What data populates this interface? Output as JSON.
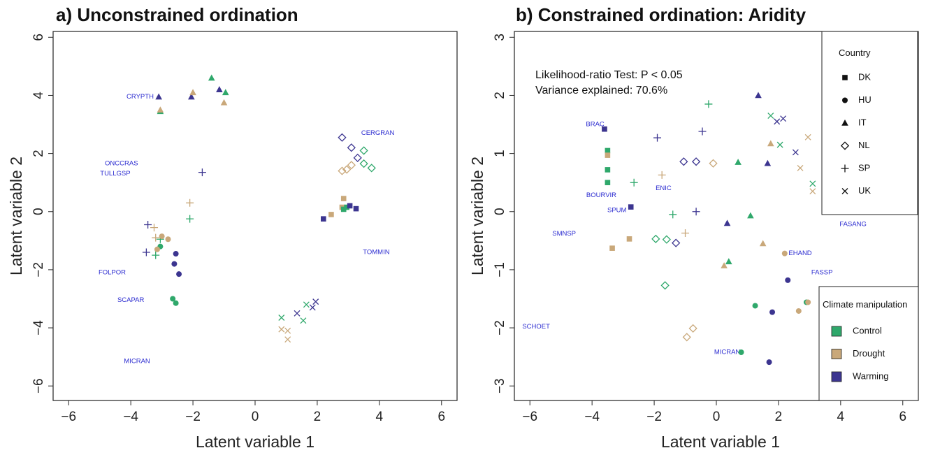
{
  "colors": {
    "Control": "#2fa86b",
    "Drought": "#c9a87a",
    "Warming": "#3c3590",
    "species_label": "#2b2bd0",
    "axis": "#222222"
  },
  "chart_data": [
    {
      "type": "scatter",
      "title": "a) Unconstrained ordination",
      "xlabel": "Latent variable  1",
      "ylabel": "Latent variable  2",
      "xlim": [
        -6.5,
        6.5
      ],
      "ylim": [
        -6.5,
        6.2
      ],
      "xticks": [
        -6,
        -4,
        -2,
        0,
        2,
        4,
        6
      ],
      "yticks": [
        -6,
        -4,
        -2,
        0,
        2,
        4,
        6
      ],
      "grid": false,
      "points": [
        {
          "x": -3.05,
          "y": 3.45,
          "country": "IT",
          "treatment": "Control"
        },
        {
          "x": -3.05,
          "y": 3.5,
          "country": "IT",
          "treatment": "Drought"
        },
        {
          "x": -3.1,
          "y": 3.95,
          "country": "IT",
          "treatment": "Warming"
        },
        {
          "x": -2.05,
          "y": 3.95,
          "country": "IT",
          "treatment": "Warming"
        },
        {
          "x": -2.0,
          "y": 4.1,
          "country": "IT",
          "treatment": "Drought"
        },
        {
          "x": -1.4,
          "y": 4.6,
          "country": "IT",
          "treatment": "Control"
        },
        {
          "x": -1.15,
          "y": 4.2,
          "country": "IT",
          "treatment": "Warming"
        },
        {
          "x": -0.95,
          "y": 4.1,
          "country": "IT",
          "treatment": "Control"
        },
        {
          "x": -1.0,
          "y": 3.75,
          "country": "IT",
          "treatment": "Drought"
        },
        {
          "x": 2.8,
          "y": 2.55,
          "country": "NL",
          "treatment": "Warming"
        },
        {
          "x": 3.1,
          "y": 2.2,
          "country": "NL",
          "treatment": "Warming"
        },
        {
          "x": 3.5,
          "y": 2.1,
          "country": "NL",
          "treatment": "Control"
        },
        {
          "x": 3.3,
          "y": 1.85,
          "country": "NL",
          "treatment": "Warming"
        },
        {
          "x": 3.5,
          "y": 1.65,
          "country": "NL",
          "treatment": "Control"
        },
        {
          "x": 3.75,
          "y": 1.5,
          "country": "NL",
          "treatment": "Control"
        },
        {
          "x": 3.1,
          "y": 1.6,
          "country": "NL",
          "treatment": "Drought"
        },
        {
          "x": 2.95,
          "y": 1.45,
          "country": "NL",
          "treatment": "Drought"
        },
        {
          "x": 2.8,
          "y": 1.4,
          "country": "NL",
          "treatment": "Drought"
        },
        {
          "x": 2.85,
          "y": 0.45,
          "country": "DK",
          "treatment": "Drought"
        },
        {
          "x": 2.8,
          "y": 0.15,
          "country": "DK",
          "treatment": "Drought"
        },
        {
          "x": 2.85,
          "y": 0.08,
          "country": "DK",
          "treatment": "Control"
        },
        {
          "x": 2.95,
          "y": 0.15,
          "country": "DK",
          "treatment": "Control"
        },
        {
          "x": 3.05,
          "y": 0.2,
          "country": "DK",
          "treatment": "Warming"
        },
        {
          "x": 3.25,
          "y": 0.1,
          "country": "DK",
          "treatment": "Warming"
        },
        {
          "x": 2.45,
          "y": -0.1,
          "country": "DK",
          "treatment": "Drought"
        },
        {
          "x": 2.2,
          "y": -0.25,
          "country": "DK",
          "treatment": "Warming"
        },
        {
          "x": -1.7,
          "y": 1.35,
          "country": "SP",
          "treatment": "Warming"
        },
        {
          "x": -2.1,
          "y": 0.3,
          "country": "SP",
          "treatment": "Drought"
        },
        {
          "x": -2.1,
          "y": -0.25,
          "country": "SP",
          "treatment": "Control"
        },
        {
          "x": -3.45,
          "y": -0.45,
          "country": "SP",
          "treatment": "Warming"
        },
        {
          "x": -3.25,
          "y": -0.55,
          "country": "SP",
          "treatment": "Drought"
        },
        {
          "x": -3.2,
          "y": -0.9,
          "country": "SP",
          "treatment": "Drought"
        },
        {
          "x": -3.05,
          "y": -0.95,
          "country": "SP",
          "treatment": "Control"
        },
        {
          "x": -3.5,
          "y": -1.4,
          "country": "SP",
          "treatment": "Warming"
        },
        {
          "x": -3.2,
          "y": -1.5,
          "country": "SP",
          "treatment": "Control"
        },
        {
          "x": -3.0,
          "y": -0.85,
          "country": "HU",
          "treatment": "Drought"
        },
        {
          "x": -2.8,
          "y": -0.95,
          "country": "HU",
          "treatment": "Drought"
        },
        {
          "x": -3.05,
          "y": -1.2,
          "country": "HU",
          "treatment": "Control"
        },
        {
          "x": -3.15,
          "y": -1.3,
          "country": "HU",
          "treatment": "Drought"
        },
        {
          "x": -2.55,
          "y": -1.45,
          "country": "HU",
          "treatment": "Warming"
        },
        {
          "x": -2.6,
          "y": -1.8,
          "country": "HU",
          "treatment": "Warming"
        },
        {
          "x": -2.45,
          "y": -2.15,
          "country": "HU",
          "treatment": "Warming"
        },
        {
          "x": -2.65,
          "y": -3.0,
          "country": "HU",
          "treatment": "Control"
        },
        {
          "x": -2.55,
          "y": -3.15,
          "country": "HU",
          "treatment": "Control"
        },
        {
          "x": 1.95,
          "y": -3.1,
          "country": "UK",
          "treatment": "Warming"
        },
        {
          "x": 1.65,
          "y": -3.2,
          "country": "UK",
          "treatment": "Control"
        },
        {
          "x": 1.85,
          "y": -3.3,
          "country": "UK",
          "treatment": "Warming"
        },
        {
          "x": 1.35,
          "y": -3.5,
          "country": "UK",
          "treatment": "Warming"
        },
        {
          "x": 0.85,
          "y": -3.65,
          "country": "UK",
          "treatment": "Control"
        },
        {
          "x": 1.55,
          "y": -3.75,
          "country": "UK",
          "treatment": "Control"
        },
        {
          "x": 0.85,
          "y": -4.05,
          "country": "UK",
          "treatment": "Drought"
        },
        {
          "x": 1.05,
          "y": -4.1,
          "country": "UK",
          "treatment": "Drought"
        },
        {
          "x": 1.05,
          "y": -4.4,
          "country": "UK",
          "treatment": "Drought"
        }
      ],
      "species_labels": [
        {
          "text": "CRYPTH",
          "x": -3.7,
          "y": 3.95
        },
        {
          "text": "CERGRAN",
          "x": 3.95,
          "y": 2.7
        },
        {
          "text": "ONCCRAS",
          "x": -4.3,
          "y": 1.65
        },
        {
          "text": "TULLGSP",
          "x": -4.5,
          "y": 1.3
        },
        {
          "text": "TOMMIN",
          "x": 3.9,
          "y": -1.4
        },
        {
          "text": "FOLPOR",
          "x": -4.6,
          "y": -2.1
        },
        {
          "text": "SCAPAR",
          "x": -4.0,
          "y": -3.05
        },
        {
          "text": "MICRAN",
          "x": -3.8,
          "y": -5.15
        }
      ]
    },
    {
      "type": "scatter",
      "title": "b) Constrained ordination: Aridity",
      "xlabel": "Latent variable  1",
      "ylabel": "Latent variable  2",
      "xlim": [
        -6.5,
        6.5
      ],
      "ylim": [
        -3.25,
        3.1
      ],
      "xticks": [
        -6,
        -4,
        -2,
        0,
        2,
        4,
        6
      ],
      "yticks": [
        -3,
        -2,
        -1,
        0,
        1,
        2,
        3
      ],
      "grid": false,
      "annotation": [
        "Likelihood-ratio Test: P < 0.05",
        "Variance explained: 70.6%"
      ],
      "legend_country": {
        "title": "Country",
        "items": [
          {
            "label": "DK",
            "country": "DK"
          },
          {
            "label": "HU",
            "country": "HU"
          },
          {
            "label": "IT",
            "country": "IT"
          },
          {
            "label": "NL",
            "country": "NL"
          },
          {
            "label": "SP",
            "country": "SP"
          },
          {
            "label": "UK",
            "country": "UK"
          }
        ]
      },
      "legend_treatment": {
        "title": "Climate manipulation",
        "items": [
          "Control",
          "Drought",
          "Warming"
        ]
      },
      "points": [
        {
          "x": -3.6,
          "y": 1.42,
          "country": "DK",
          "treatment": "Drought"
        },
        {
          "x": -3.6,
          "y": 1.42,
          "country": "DK",
          "treatment": "Warming"
        },
        {
          "x": -3.5,
          "y": 1.05,
          "country": "DK",
          "treatment": "Control"
        },
        {
          "x": -3.5,
          "y": 0.97,
          "country": "DK",
          "treatment": "Drought"
        },
        {
          "x": -3.5,
          "y": 0.72,
          "country": "DK",
          "treatment": "Control"
        },
        {
          "x": -3.5,
          "y": 0.5,
          "country": "DK",
          "treatment": "Control"
        },
        {
          "x": -2.75,
          "y": 0.08,
          "country": "DK",
          "treatment": "Warming"
        },
        {
          "x": -3.35,
          "y": -0.63,
          "country": "DK",
          "treatment": "Drought"
        },
        {
          "x": -2.8,
          "y": -0.47,
          "country": "DK",
          "treatment": "Drought"
        },
        {
          "x": -0.25,
          "y": 1.85,
          "country": "SP",
          "treatment": "Control"
        },
        {
          "x": -1.9,
          "y": 1.27,
          "country": "SP",
          "treatment": "Warming"
        },
        {
          "x": -0.45,
          "y": 1.38,
          "country": "SP",
          "treatment": "Warming"
        },
        {
          "x": -1.75,
          "y": 0.63,
          "country": "SP",
          "treatment": "Drought"
        },
        {
          "x": -2.65,
          "y": 0.5,
          "country": "SP",
          "treatment": "Control"
        },
        {
          "x": -1.4,
          "y": -0.05,
          "country": "SP",
          "treatment": "Control"
        },
        {
          "x": -0.65,
          "y": 0.0,
          "country": "SP",
          "treatment": "Warming"
        },
        {
          "x": -1.0,
          "y": -0.37,
          "country": "SP",
          "treatment": "Drought"
        },
        {
          "x": -0.1,
          "y": 0.83,
          "country": "NL",
          "treatment": "Drought"
        },
        {
          "x": -1.05,
          "y": 0.86,
          "country": "NL",
          "treatment": "Warming"
        },
        {
          "x": -0.65,
          "y": 0.86,
          "country": "NL",
          "treatment": "Warming"
        },
        {
          "x": -1.95,
          "y": -0.47,
          "country": "NL",
          "treatment": "Control"
        },
        {
          "x": -1.6,
          "y": -0.48,
          "country": "NL",
          "treatment": "Control"
        },
        {
          "x": -1.3,
          "y": -0.54,
          "country": "NL",
          "treatment": "Warming"
        },
        {
          "x": -1.65,
          "y": -1.27,
          "country": "NL",
          "treatment": "Control"
        },
        {
          "x": -0.75,
          "y": -2.01,
          "country": "NL",
          "treatment": "Drought"
        },
        {
          "x": -0.95,
          "y": -2.16,
          "country": "NL",
          "treatment": "Drought"
        },
        {
          "x": 1.35,
          "y": 2.0,
          "country": "IT",
          "treatment": "Warming"
        },
        {
          "x": 0.7,
          "y": 0.85,
          "country": "IT",
          "treatment": "Control"
        },
        {
          "x": 1.65,
          "y": 0.83,
          "country": "IT",
          "treatment": "Warming"
        },
        {
          "x": 1.75,
          "y": 1.17,
          "country": "IT",
          "treatment": "Drought"
        },
        {
          "x": 0.35,
          "y": -0.2,
          "country": "IT",
          "treatment": "Warming"
        },
        {
          "x": 1.1,
          "y": -0.07,
          "country": "IT",
          "treatment": "Control"
        },
        {
          "x": 1.5,
          "y": -0.55,
          "country": "IT",
          "treatment": "Drought"
        },
        {
          "x": 0.4,
          "y": -0.86,
          "country": "IT",
          "treatment": "Control"
        },
        {
          "x": 0.25,
          "y": -0.93,
          "country": "IT",
          "treatment": "Drought"
        },
        {
          "x": 1.75,
          "y": 1.65,
          "country": "UK",
          "treatment": "Control"
        },
        {
          "x": 1.95,
          "y": 1.55,
          "country": "UK",
          "treatment": "Warming"
        },
        {
          "x": 2.15,
          "y": 1.6,
          "country": "UK",
          "treatment": "Warming"
        },
        {
          "x": 2.05,
          "y": 1.15,
          "country": "UK",
          "treatment": "Control"
        },
        {
          "x": 2.55,
          "y": 1.02,
          "country": "UK",
          "treatment": "Warming"
        },
        {
          "x": 2.7,
          "y": 0.75,
          "country": "UK",
          "treatment": "Drought"
        },
        {
          "x": 2.95,
          "y": 1.28,
          "country": "UK",
          "treatment": "Drought"
        },
        {
          "x": 3.1,
          "y": 0.48,
          "country": "UK",
          "treatment": "Control"
        },
        {
          "x": 3.1,
          "y": 0.35,
          "country": "UK",
          "treatment": "Drought"
        },
        {
          "x": 2.2,
          "y": -0.72,
          "country": "HU",
          "treatment": "Drought"
        },
        {
          "x": 2.3,
          "y": -1.18,
          "country": "HU",
          "treatment": "Warming"
        },
        {
          "x": 2.9,
          "y": -1.56,
          "country": "HU",
          "treatment": "Control"
        },
        {
          "x": 2.95,
          "y": -1.56,
          "country": "HU",
          "treatment": "Drought"
        },
        {
          "x": 1.25,
          "y": -1.62,
          "country": "HU",
          "treatment": "Control"
        },
        {
          "x": 1.8,
          "y": -1.73,
          "country": "HU",
          "treatment": "Warming"
        },
        {
          "x": 2.65,
          "y": -1.71,
          "country": "HU",
          "treatment": "Drought"
        },
        {
          "x": 0.8,
          "y": -2.42,
          "country": "HU",
          "treatment": "Control"
        },
        {
          "x": 1.7,
          "y": -2.59,
          "country": "HU",
          "treatment": "Warming"
        }
      ],
      "species_labels": [
        {
          "text": "BRAC",
          "x": -3.9,
          "y": 1.5
        },
        {
          "text": "BOURVIR",
          "x": -3.7,
          "y": 0.28
        },
        {
          "text": "SPUM",
          "x": -3.2,
          "y": 0.02
        },
        {
          "text": "ENIC",
          "x": -1.7,
          "y": 0.4
        },
        {
          "text": "SMNSP",
          "x": -4.9,
          "y": -0.38
        },
        {
          "text": "EHAND",
          "x": 2.7,
          "y": -0.72
        },
        {
          "text": "FASANG",
          "x": 4.4,
          "y": -0.22
        },
        {
          "text": "FASSP",
          "x": 3.4,
          "y": -1.05
        },
        {
          "text": "SCHOET",
          "x": -5.8,
          "y": -1.98
        },
        {
          "text": "MICRAN",
          "x": 0.35,
          "y": -2.42
        }
      ]
    }
  ]
}
